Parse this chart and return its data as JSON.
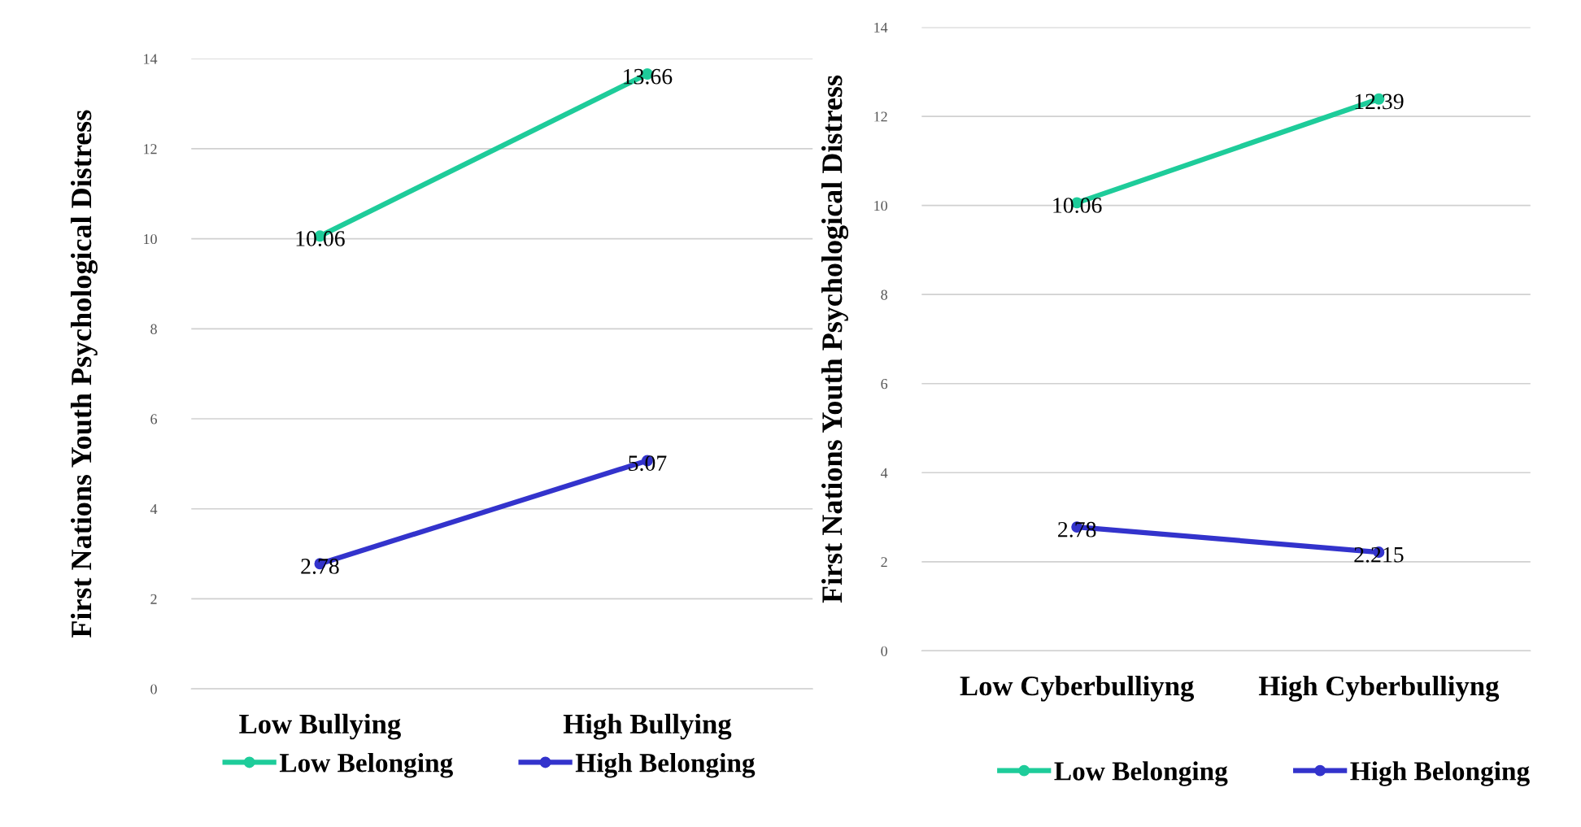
{
  "chart_data": [
    {
      "type": "line",
      "categories": [
        "Low Bullying",
        "High Bullying"
      ],
      "ylabel": "First Nations Youth Psychological Distress",
      "ylim": [
        0,
        14
      ],
      "yticks": [
        0,
        2,
        4,
        6,
        8,
        10,
        12,
        14
      ],
      "grid": "y",
      "legend": "bottom",
      "marker": "circle",
      "data_labels": true,
      "series": [
        {
          "name": "Low Belonging",
          "color": "#1ecc9a",
          "values": [
            10.06,
            13.66
          ]
        },
        {
          "name": "High Belonging",
          "color": "#3333cc",
          "values": [
            2.78,
            5.07
          ]
        }
      ]
    },
    {
      "type": "line",
      "categories": [
        "Low Cyberbulliyng",
        "High Cyberbulliyng"
      ],
      "ylabel": "First Nations Youth Psychological Distress",
      "ylim": [
        0,
        14
      ],
      "yticks": [
        0,
        2,
        4,
        6,
        8,
        10,
        12,
        14
      ],
      "grid": "y",
      "legend": "bottom",
      "marker": "circle",
      "data_labels": true,
      "series": [
        {
          "name": "Low Belonging",
          "color": "#1ecc9a",
          "values": [
            10.06,
            12.39
          ]
        },
        {
          "name": "High Belonging",
          "color": "#3333cc",
          "values": [
            2.78,
            2.215
          ]
        }
      ]
    }
  ]
}
